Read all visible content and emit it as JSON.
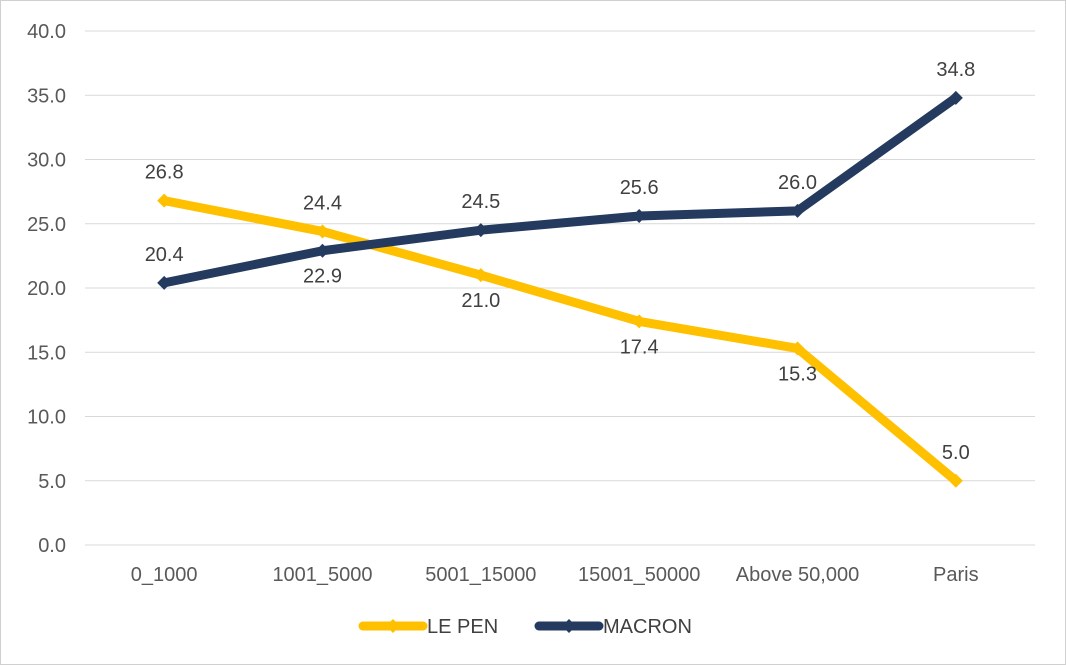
{
  "chart_data": {
    "type": "line",
    "categories": [
      "0_1000",
      "1001_5000",
      "5001_15000",
      "15001_50000",
      "Above 50,000",
      "Paris"
    ],
    "series": [
      {
        "name": "LE PEN",
        "values": [
          26.8,
          24.4,
          21.0,
          17.4,
          15.3,
          5.0
        ],
        "color": "#FFC000",
        "labels": [
          "26.8",
          "24.4",
          "21.0",
          "17.4",
          "15.3",
          "5.0"
        ]
      },
      {
        "name": "MACRON",
        "values": [
          20.4,
          22.9,
          24.5,
          25.6,
          26.0,
          34.8
        ],
        "color": "#243A5E",
        "labels": [
          "20.4",
          "22.9",
          "24.5",
          "25.6",
          "26.0",
          "34.8"
        ]
      }
    ],
    "yticks": [
      "0.0",
      "5.0",
      "10.0",
      "15.0",
      "20.0",
      "25.0",
      "30.0",
      "35.0",
      "40.0"
    ],
    "ylim": [
      0,
      40
    ],
    "ystep": 5,
    "grid": true,
    "legend": "bottom-center",
    "title": "",
    "xlabel": "",
    "ylabel": ""
  }
}
